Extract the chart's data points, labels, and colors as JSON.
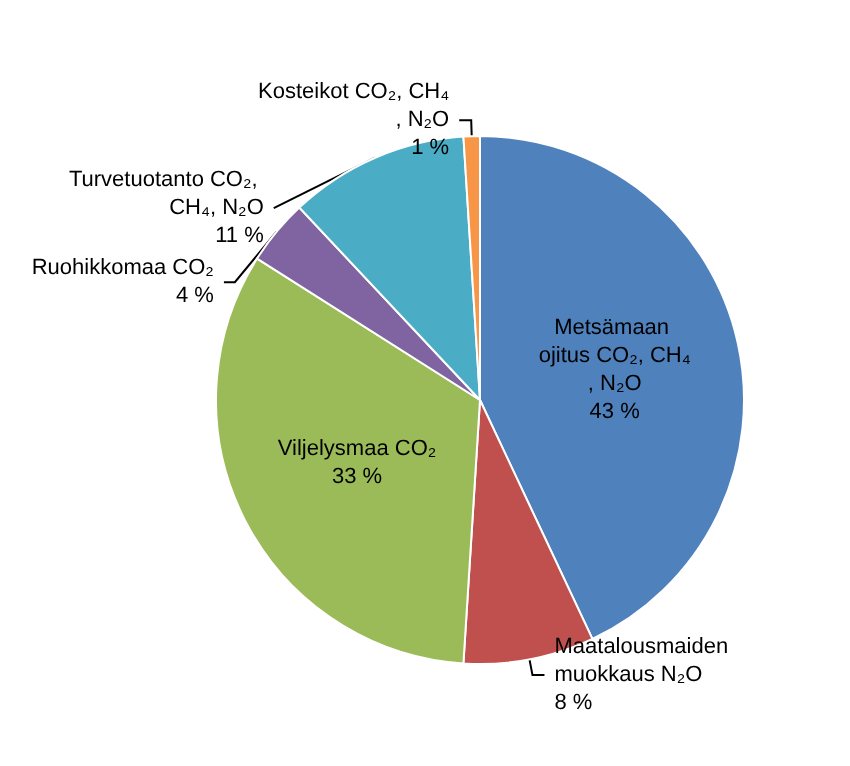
{
  "chart_data": {
    "type": "pie",
    "categories": [
      "Metsämaan ojitus CO₂, CH₄, N₂O",
      "Maatalousmaiden muokkaus N₂O",
      "Viljelysmaa CO₂",
      "Ruohikkomaa CO₂",
      "Turvetuotanto CO₂, CH₄, N₂O",
      "Kosteikot CO₂, CH₄, N₂O"
    ],
    "values": [
      43,
      8,
      33,
      4,
      11,
      1
    ],
    "value_labels": [
      "43 %",
      "8 %",
      "33 %",
      "4 %",
      "11 %",
      "1 %"
    ],
    "colors": [
      "#4f81bd",
      "#c0504d",
      "#9bbb59",
      "#8064a2",
      "#4bacc6",
      "#f79646"
    ]
  }
}
